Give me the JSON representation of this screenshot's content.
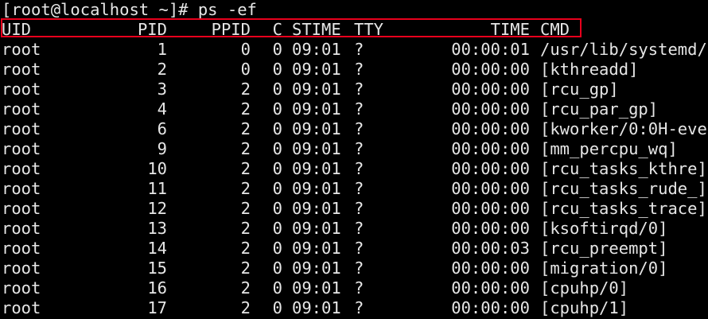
{
  "terminal": {
    "prompt": "[root@localhost ~]# ps -ef",
    "highlight_color": "#e8001c",
    "text_color": "#e6e6e6",
    "background": "#000000",
    "header": {
      "uid": "UID",
      "pid": "PID",
      "ppid": "PPID",
      "c": "C",
      "stime": "STIME",
      "tty": "TTY",
      "time": "TIME",
      "cmd": "CMD"
    },
    "rows": [
      {
        "uid": "root",
        "pid": "1",
        "ppid": "0",
        "c": "0",
        "stime": "09:01",
        "tty": "?",
        "time": "00:00:01",
        "cmd": "/usr/lib/systemd/"
      },
      {
        "uid": "root",
        "pid": "2",
        "ppid": "0",
        "c": "0",
        "stime": "09:01",
        "tty": "?",
        "time": "00:00:00",
        "cmd": "[kthreadd]"
      },
      {
        "uid": "root",
        "pid": "3",
        "ppid": "2",
        "c": "0",
        "stime": "09:01",
        "tty": "?",
        "time": "00:00:00",
        "cmd": "[rcu_gp]"
      },
      {
        "uid": "root",
        "pid": "4",
        "ppid": "2",
        "c": "0",
        "stime": "09:01",
        "tty": "?",
        "time": "00:00:00",
        "cmd": "[rcu_par_gp]"
      },
      {
        "uid": "root",
        "pid": "6",
        "ppid": "2",
        "c": "0",
        "stime": "09:01",
        "tty": "?",
        "time": "00:00:00",
        "cmd": "[kworker/0:0H-eve"
      },
      {
        "uid": "root",
        "pid": "9",
        "ppid": "2",
        "c": "0",
        "stime": "09:01",
        "tty": "?",
        "time": "00:00:00",
        "cmd": "[mm_percpu_wq]"
      },
      {
        "uid": "root",
        "pid": "10",
        "ppid": "2",
        "c": "0",
        "stime": "09:01",
        "tty": "?",
        "time": "00:00:00",
        "cmd": "[rcu_tasks_kthre]"
      },
      {
        "uid": "root",
        "pid": "11",
        "ppid": "2",
        "c": "0",
        "stime": "09:01",
        "tty": "?",
        "time": "00:00:00",
        "cmd": "[rcu_tasks_rude_]"
      },
      {
        "uid": "root",
        "pid": "12",
        "ppid": "2",
        "c": "0",
        "stime": "09:01",
        "tty": "?",
        "time": "00:00:00",
        "cmd": "[rcu_tasks_trace]"
      },
      {
        "uid": "root",
        "pid": "13",
        "ppid": "2",
        "c": "0",
        "stime": "09:01",
        "tty": "?",
        "time": "00:00:00",
        "cmd": "[ksoftirqd/0]"
      },
      {
        "uid": "root",
        "pid": "14",
        "ppid": "2",
        "c": "0",
        "stime": "09:01",
        "tty": "?",
        "time": "00:00:03",
        "cmd": "[rcu_preempt]"
      },
      {
        "uid": "root",
        "pid": "15",
        "ppid": "2",
        "c": "0",
        "stime": "09:01",
        "tty": "?",
        "time": "00:00:00",
        "cmd": "[migration/0]"
      },
      {
        "uid": "root",
        "pid": "16",
        "ppid": "2",
        "c": "0",
        "stime": "09:01",
        "tty": "?",
        "time": "00:00:00",
        "cmd": "[cpuhp/0]"
      },
      {
        "uid": "root",
        "pid": "17",
        "ppid": "2",
        "c": "0",
        "stime": "09:01",
        "tty": "?",
        "time": "00:00:00",
        "cmd": "[cpuhp/1]"
      }
    ]
  }
}
